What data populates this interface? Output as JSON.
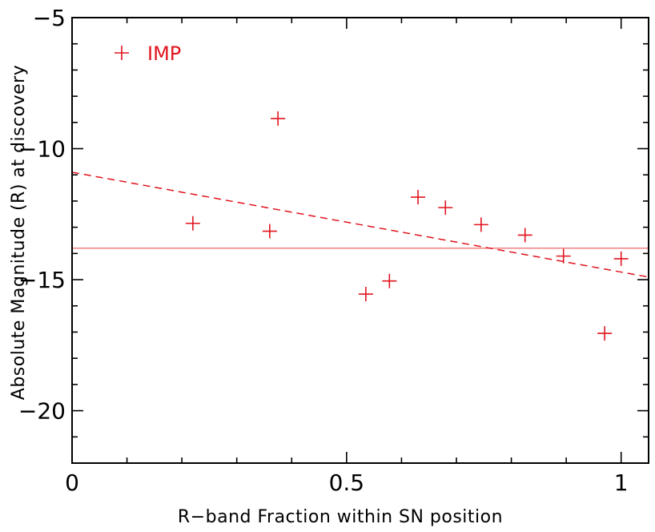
{
  "chart_data": {
    "type": "scatter",
    "xlabel": "R−band Fraction within SN position",
    "ylabel": "Absolute Magnitude (R) at discovery",
    "xlim": [
      0,
      1.05
    ],
    "ylim": [
      -22,
      -5
    ],
    "y_inverted": true,
    "x_ticks": [
      0,
      0.5,
      1
    ],
    "x_tick_labels": [
      "0",
      "0.5",
      "1"
    ],
    "y_ticks": [
      -5,
      -10,
      -15,
      -20
    ],
    "y_tick_labels": [
      "−5",
      "−10",
      "−15",
      "−20"
    ],
    "grid": false,
    "legend_placement": "top-left",
    "series": [
      {
        "name": "IMP",
        "marker": "plus",
        "color": "#e0141e",
        "x": [
          0.22,
          0.36,
          0.375,
          0.535,
          0.578,
          0.63,
          0.68,
          0.745,
          0.825,
          0.895,
          0.97,
          1.0
        ],
        "y": [
          -12.85,
          -13.15,
          -8.85,
          -15.55,
          -15.05,
          -11.85,
          -12.25,
          -12.9,
          -13.3,
          -14.1,
          -17.05,
          -14.2
        ]
      }
    ],
    "reference_lines": [
      {
        "style": "solid",
        "color": "#f08080",
        "y": -13.8
      },
      {
        "style": "dashed",
        "color": "#e0141e",
        "x": [
          0,
          1.05
        ],
        "y": [
          -10.9,
          -14.9
        ]
      }
    ]
  }
}
